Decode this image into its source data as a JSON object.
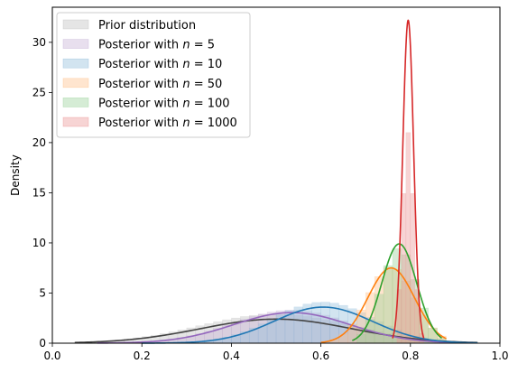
{
  "chart_data": {
    "type": "area",
    "title": "",
    "xlabel": "",
    "ylabel": "Density",
    "xlim": [
      0.0,
      1.0
    ],
    "ylim": [
      0,
      33.5
    ],
    "xticks": [
      0.0,
      0.2,
      0.4,
      0.6,
      0.8,
      1.0
    ],
    "xtick_labels": [
      "0.0",
      "0.2",
      "0.4",
      "0.6",
      "0.8",
      "1.0"
    ],
    "yticks": [
      0,
      5,
      10,
      15,
      20,
      25,
      30
    ],
    "ytick_labels": [
      "0",
      "5",
      "10",
      "15",
      "20",
      "25",
      "30"
    ],
    "grid": false,
    "legend_position": "top-left",
    "series": [
      {
        "name": "Prior distribution",
        "legend_prefix": "Prior distribution",
        "legend_n": "",
        "color": "#444444",
        "fill": "#bfbfbf",
        "kde": {
          "mean": 0.5,
          "sd": 0.168,
          "peak": 2.4,
          "min": 0.05,
          "max": 0.95
        },
        "hist": {
          "start": 0.1,
          "bins": 40,
          "width": 0.02,
          "peak": 2.9
        }
      },
      {
        "name": "Posterior with n = 5",
        "legend_prefix": "Posterior with ",
        "legend_n": "5",
        "color": "#9467bd",
        "fill": "#c5b0d5",
        "kde": {
          "mean": 0.535,
          "sd": 0.13,
          "peak": 3.05,
          "min": 0.1,
          "max": 0.94
        },
        "hist": {
          "start": 0.2,
          "bins": 36,
          "width": 0.02,
          "peak": 3.3
        }
      },
      {
        "name": "Posterior with n = 10",
        "legend_prefix": "Posterior with ",
        "legend_n": "10",
        "color": "#1f77b4",
        "fill": "#8fbbda",
        "kde": {
          "mean": 0.605,
          "sd": 0.11,
          "peak": 3.6,
          "min": 0.2,
          "max": 0.95
        },
        "hist": {
          "start": 0.28,
          "bins": 32,
          "width": 0.02,
          "peak": 4.1
        }
      },
      {
        "name": "Posterior with n = 50",
        "legend_prefix": "Posterior with ",
        "legend_n": "50",
        "color": "#ff7f0e",
        "fill": "#ffbf87",
        "kde": {
          "mean": 0.757,
          "sd": 0.052,
          "peak": 7.5,
          "min": 0.6,
          "max": 0.88
        },
        "hist": {
          "start": 0.62,
          "bins": 13,
          "width": 0.02,
          "peak": 7.6
        }
      },
      {
        "name": "Posterior with n = 100",
        "legend_prefix": "Posterior with ",
        "legend_n": "100",
        "color": "#2ca02c",
        "fill": "#96d096",
        "kde": {
          "mean": 0.775,
          "sd": 0.039,
          "peak": 9.9,
          "min": 0.67,
          "max": 0.87
        },
        "hist": {
          "start": 0.68,
          "bins": 10,
          "width": 0.02,
          "peak": 9.5
        }
      },
      {
        "name": "Posterior with n = 1000",
        "legend_prefix": "Posterior with ",
        "legend_n": "1000",
        "color": "#d62728",
        "fill": "#eb9394",
        "kde": {
          "mean": 0.795,
          "sd": 0.0121,
          "peak": 32.2,
          "min": 0.76,
          "max": 0.83
        },
        "hist": {
          "start": 0.77,
          "bins": 6,
          "width": 0.01,
          "peak": 21.0
        }
      }
    ]
  }
}
